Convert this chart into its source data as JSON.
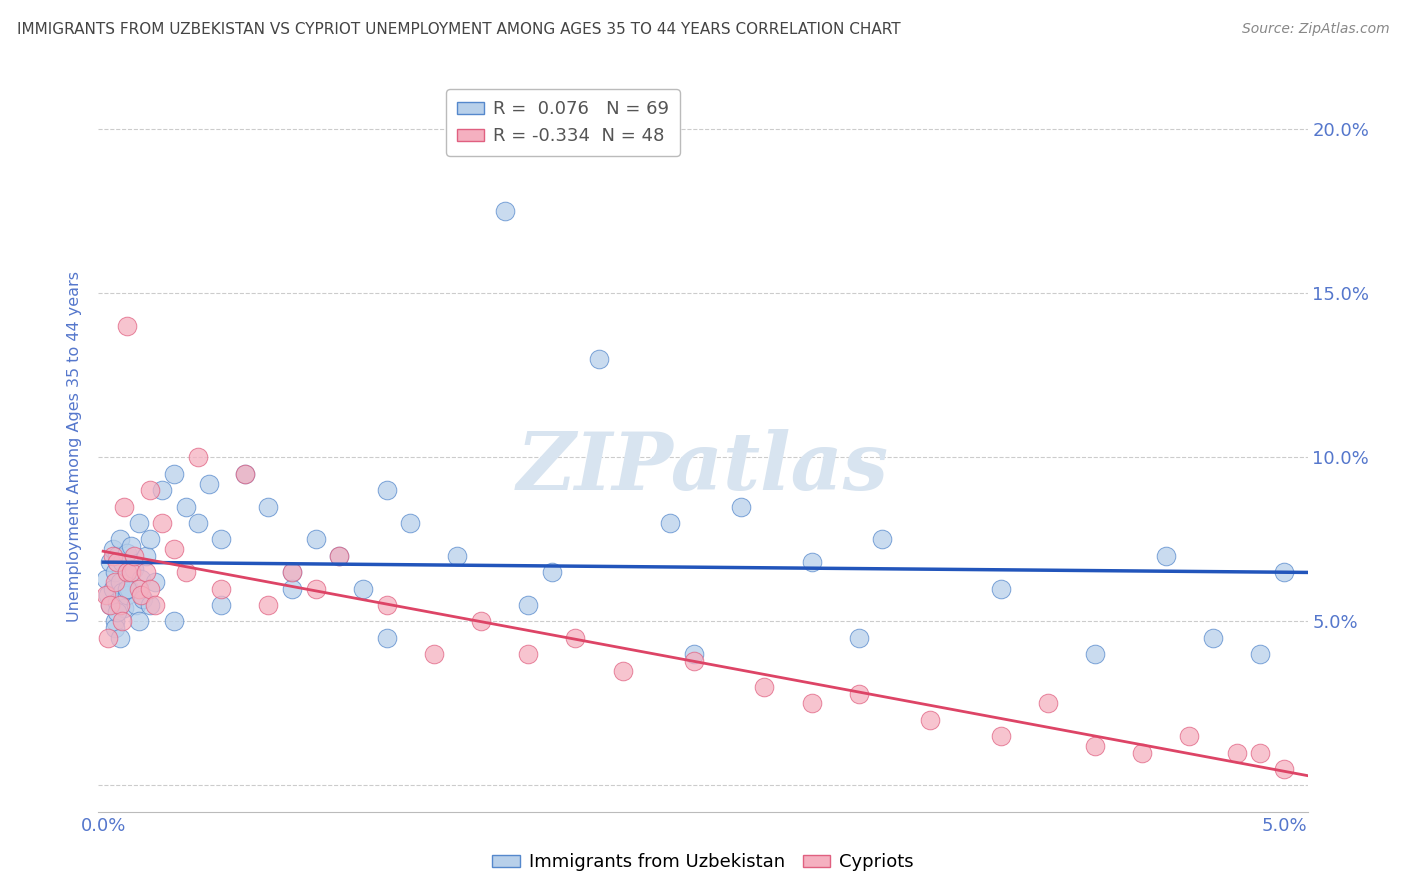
{
  "title": "IMMIGRANTS FROM UZBEKISTAN VS CYPRIOT UNEMPLOYMENT AMONG AGES 35 TO 44 YEARS CORRELATION CHART",
  "source": "Source: ZipAtlas.com",
  "ylabel": "Unemployment Among Ages 35 to 44 years",
  "blue_series_label": "Immigrants from Uzbekistan",
  "pink_series_label": "Cypriots",
  "blue_R": 0.076,
  "blue_N": 69,
  "pink_R": -0.334,
  "pink_N": 48,
  "blue_color": "#b8d0ea",
  "pink_color": "#f5b0c0",
  "blue_edge_color": "#5588cc",
  "pink_edge_color": "#e06080",
  "blue_line_color": "#2255bb",
  "pink_line_color": "#dd4466",
  "title_color": "#444444",
  "source_color": "#888888",
  "axis_label_color": "#5577cc",
  "tick_color": "#5577cc",
  "grid_color": "#cccccc",
  "watermark_text": "ZIPatlas",
  "watermark_color": "#d8e4f0",
  "xmin": -0.0002,
  "xmax": 0.051,
  "ymin": -0.008,
  "ymax": 0.215,
  "yticks": [
    0.0,
    0.05,
    0.1,
    0.15,
    0.2
  ],
  "ytick_labels_right": [
    "",
    "5.0%",
    "10.0%",
    "15.0%",
    "20.0%"
  ],
  "xticks": [
    0.0,
    0.01,
    0.02,
    0.03,
    0.04,
    0.05
  ],
  "xtick_labels": [
    "0.0%",
    "",
    "",
    "",
    "",
    "5.0%"
  ],
  "blue_scatter_x": [
    0.0001,
    0.0002,
    0.0003,
    0.0003,
    0.0004,
    0.0004,
    0.0005,
    0.0005,
    0.0006,
    0.0006,
    0.0007,
    0.0007,
    0.0008,
    0.0008,
    0.0009,
    0.001,
    0.001,
    0.001,
    0.0011,
    0.0012,
    0.0013,
    0.0014,
    0.0015,
    0.0016,
    0.0017,
    0.0018,
    0.002,
    0.0022,
    0.0025,
    0.003,
    0.0035,
    0.004,
    0.0045,
    0.005,
    0.006,
    0.007,
    0.008,
    0.009,
    0.01,
    0.011,
    0.012,
    0.013,
    0.015,
    0.017,
    0.019,
    0.021,
    0.024,
    0.027,
    0.03,
    0.033,
    0.0005,
    0.0006,
    0.0007,
    0.001,
    0.0015,
    0.002,
    0.003,
    0.005,
    0.008,
    0.012,
    0.018,
    0.025,
    0.032,
    0.038,
    0.042,
    0.045,
    0.047,
    0.049,
    0.05
  ],
  "blue_scatter_y": [
    0.063,
    0.058,
    0.068,
    0.055,
    0.072,
    0.06,
    0.065,
    0.05,
    0.07,
    0.056,
    0.062,
    0.075,
    0.059,
    0.068,
    0.054,
    0.065,
    0.071,
    0.058,
    0.06,
    0.073,
    0.066,
    0.055,
    0.08,
    0.063,
    0.057,
    0.07,
    0.075,
    0.062,
    0.09,
    0.095,
    0.085,
    0.08,
    0.092,
    0.075,
    0.095,
    0.085,
    0.065,
    0.075,
    0.07,
    0.06,
    0.09,
    0.08,
    0.07,
    0.175,
    0.065,
    0.13,
    0.08,
    0.085,
    0.068,
    0.075,
    0.048,
    0.053,
    0.045,
    0.06,
    0.05,
    0.055,
    0.05,
    0.055,
    0.06,
    0.045,
    0.055,
    0.04,
    0.045,
    0.06,
    0.04,
    0.07,
    0.045,
    0.04,
    0.065
  ],
  "pink_scatter_x": [
    0.0001,
    0.0002,
    0.0003,
    0.0004,
    0.0005,
    0.0006,
    0.0007,
    0.0008,
    0.001,
    0.001,
    0.0012,
    0.0013,
    0.0015,
    0.0016,
    0.0018,
    0.002,
    0.002,
    0.0022,
    0.0025,
    0.003,
    0.0035,
    0.004,
    0.005,
    0.006,
    0.007,
    0.008,
    0.009,
    0.01,
    0.012,
    0.014,
    0.016,
    0.018,
    0.02,
    0.022,
    0.025,
    0.028,
    0.03,
    0.032,
    0.035,
    0.038,
    0.04,
    0.042,
    0.044,
    0.046,
    0.048,
    0.049,
    0.05,
    0.0009
  ],
  "pink_scatter_y": [
    0.058,
    0.045,
    0.055,
    0.07,
    0.062,
    0.068,
    0.055,
    0.05,
    0.065,
    0.14,
    0.065,
    0.07,
    0.06,
    0.058,
    0.065,
    0.06,
    0.09,
    0.055,
    0.08,
    0.072,
    0.065,
    0.1,
    0.06,
    0.095,
    0.055,
    0.065,
    0.06,
    0.07,
    0.055,
    0.04,
    0.05,
    0.04,
    0.045,
    0.035,
    0.038,
    0.03,
    0.025,
    0.028,
    0.02,
    0.015,
    0.025,
    0.012,
    0.01,
    0.015,
    0.01,
    0.01,
    0.005,
    0.085
  ]
}
